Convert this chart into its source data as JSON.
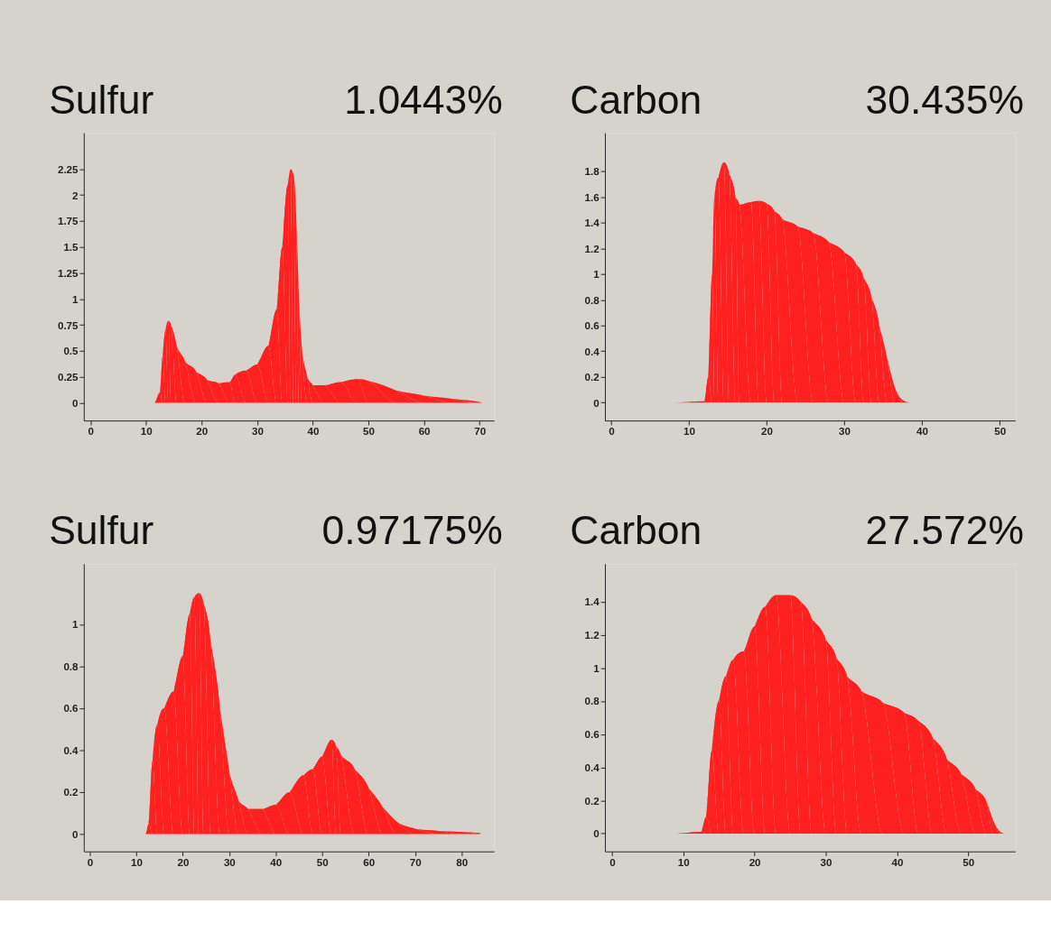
{
  "chart_data": [
    {
      "type": "area",
      "title": "Sulfur",
      "subtitle": "1.0443%",
      "grid": false,
      "xlim": [
        -1.2,
        72.6
      ],
      "ylim": [
        -0.17,
        2.6
      ],
      "xticks": [
        0,
        10,
        20,
        30,
        40,
        50,
        60,
        70
      ],
      "yticks": [
        0,
        0.25,
        0.5,
        0.75,
        1,
        1.25,
        1.5,
        1.75,
        2,
        2.25
      ],
      "x": [
        0,
        11.5,
        12.5,
        13,
        13.5,
        14,
        14.5,
        15.5,
        17,
        19,
        21,
        23,
        25,
        26,
        28,
        30,
        32,
        33.5,
        34.5,
        35.5,
        36,
        36.5,
        37,
        37.5,
        38,
        39,
        40,
        42,
        45,
        48,
        50,
        55,
        60,
        65,
        70,
        70.5
      ],
      "series": [
        {
          "color": "#ff2020",
          "values": [
            0,
            0,
            0.1,
            0.45,
            0.7,
            0.79,
            0.75,
            0.55,
            0.4,
            0.3,
            0.22,
            0.19,
            0.2,
            0.27,
            0.31,
            0.37,
            0.55,
            0.9,
            1.5,
            2.1,
            2.25,
            2.2,
            1.8,
            1.0,
            0.55,
            0.25,
            0.17,
            0.17,
            0.2,
            0.23,
            0.21,
            0.12,
            0.07,
            0.04,
            0.01,
            0
          ]
        }
      ]
    },
    {
      "type": "area",
      "title": "Carbon",
      "subtitle": "30.435%",
      "grid": false,
      "xlim": [
        -0.8,
        52
      ],
      "ylim": [
        -0.14,
        2.1
      ],
      "xticks": [
        0,
        10,
        20,
        30,
        40,
        50
      ],
      "yticks": [
        0,
        0.2,
        0.4,
        0.6,
        0.8,
        1,
        1.2,
        1.4,
        1.6,
        1.8
      ],
      "x": [
        0,
        8,
        12,
        12.5,
        13,
        13.3,
        13.8,
        14.5,
        15.2,
        16,
        16.5,
        18,
        19,
        20,
        21,
        22,
        24,
        26,
        28,
        30,
        31.5,
        32.5,
        33.5,
        34.5,
        35.5,
        36.5,
        37.5,
        38.5,
        50.5
      ],
      "series": [
        {
          "color": "#ff2020",
          "values": [
            0,
            0,
            0.01,
            0.2,
            1.0,
            1.6,
            1.75,
            1.87,
            1.78,
            1.6,
            1.54,
            1.56,
            1.57,
            1.55,
            1.49,
            1.43,
            1.37,
            1.32,
            1.25,
            1.17,
            1.08,
            0.97,
            0.82,
            0.6,
            0.35,
            0.12,
            0.02,
            0,
            0
          ]
        }
      ]
    },
    {
      "type": "area",
      "title": "Sulfur",
      "subtitle": "0.97175%",
      "grid": false,
      "xlim": [
        -1.3,
        87
      ],
      "ylim": [
        -0.083,
        1.29
      ],
      "xticks": [
        0,
        10,
        20,
        30,
        40,
        50,
        60,
        70,
        80
      ],
      "yticks": [
        0,
        0.2,
        0.4,
        0.6,
        0.8,
        1
      ],
      "x": [
        0,
        12,
        12.7,
        13.5,
        14.5,
        16,
        18,
        20,
        21.5,
        22.5,
        23.5,
        24.5,
        26,
        28,
        30,
        32,
        34,
        37,
        40,
        43,
        46,
        48,
        50,
        52,
        53,
        54,
        57,
        60,
        63,
        66,
        70,
        75,
        80,
        84
      ],
      "series": [
        {
          "color": "#ff2020",
          "values": [
            0,
            0,
            0.05,
            0.35,
            0.52,
            0.6,
            0.68,
            0.85,
            1.05,
            1.13,
            1.15,
            1.1,
            0.92,
            0.6,
            0.3,
            0.16,
            0.12,
            0.12,
            0.14,
            0.2,
            0.28,
            0.31,
            0.37,
            0.45,
            0.42,
            0.38,
            0.31,
            0.22,
            0.13,
            0.06,
            0.025,
            0.015,
            0.01,
            0.005
          ]
        }
      ]
    },
    {
      "type": "area",
      "title": "Carbon",
      "subtitle": "27.572%",
      "grid": false,
      "xlim": [
        -1.0,
        56.6
      ],
      "ylim": [
        -0.108,
        1.63
      ],
      "xticks": [
        0,
        10,
        20,
        30,
        40,
        50
      ],
      "yticks": [
        0,
        0.2,
        0.4,
        0.6,
        0.8,
        1,
        1.2,
        1.4
      ],
      "x": [
        0,
        9,
        12.5,
        13.2,
        14,
        15,
        16,
        17,
        18.5,
        20,
        21.5,
        23,
        25,
        26.5,
        28,
        30,
        31.5,
        33,
        35,
        38,
        41,
        43,
        45,
        47,
        49,
        51,
        52.5,
        53.5,
        54.5,
        55
      ],
      "series": [
        {
          "color": "#ff2020",
          "values": [
            0,
            0,
            0.01,
            0.1,
            0.5,
            0.8,
            0.95,
            1.05,
            1.1,
            1.25,
            1.37,
            1.44,
            1.44,
            1.4,
            1.3,
            1.17,
            1.06,
            0.95,
            0.86,
            0.79,
            0.73,
            0.68,
            0.58,
            0.45,
            0.36,
            0.27,
            0.2,
            0.08,
            0.01,
            0
          ]
        }
      ]
    }
  ]
}
